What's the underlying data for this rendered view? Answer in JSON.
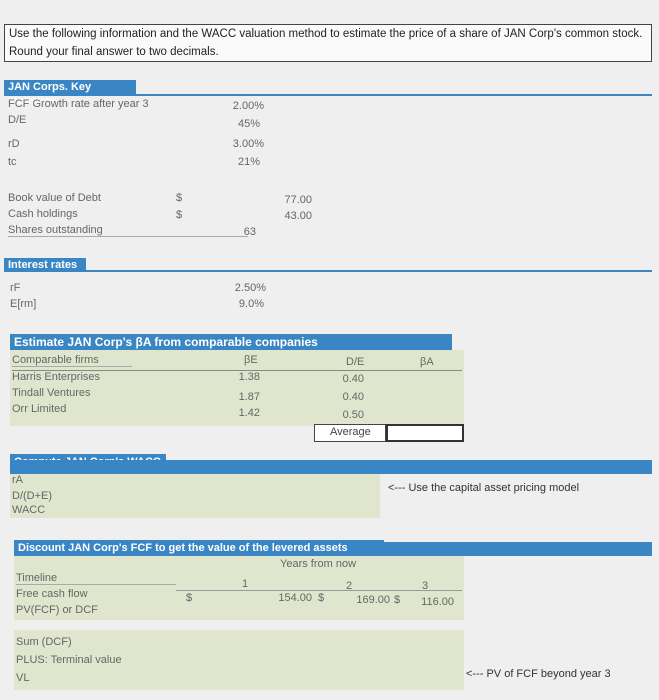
{
  "question": "Use the following information and the WACC valuation method to estimate the price of a share of JAN Corp's common stock. Round your final answer to two decimals.",
  "key_stats": {
    "title": "JAN Corps. Key statistics",
    "rows": [
      {
        "label": "FCF Growth rate after year 3",
        "value": "2.00%"
      },
      {
        "label": "D/E",
        "value": "45%"
      },
      {
        "label": "rD",
        "value": "3.00%"
      },
      {
        "label": "tc",
        "value": "21%"
      }
    ],
    "balance": [
      {
        "label": "Book value of Debt",
        "currency": "$",
        "value": "77.00"
      },
      {
        "label": "Cash holdings",
        "currency": "$",
        "value": "43.00"
      },
      {
        "label": "Shares outstanding",
        "currency": "",
        "value": "63"
      }
    ]
  },
  "interest": {
    "title": "Interest rates",
    "rows": [
      {
        "label": "rF",
        "value": "2.50%"
      },
      {
        "label": "E[rm]",
        "value": "9.0%"
      }
    ]
  },
  "comparables": {
    "title": "Estimate JAN Corp's βA from comparable companies",
    "headers": [
      "Comparable firms",
      "βE",
      "D/E",
      "βA"
    ],
    "rows": [
      {
        "firm": "Harris Enterprises",
        "beta_e": "1.38",
        "de": "0.40"
      },
      {
        "firm": "Tindall Ventures",
        "beta_e": "1.87",
        "de": "0.40"
      },
      {
        "firm": "Orr Limited",
        "beta_e": "1.42",
        "de": "0.50"
      }
    ],
    "average_label": "Average"
  },
  "wacc": {
    "title": "Compute JAN Corp's WACC",
    "rows": [
      "rA",
      "D/(D+E)",
      "WACC"
    ],
    "note": "<--- Use the capital asset pricing model"
  },
  "dcf": {
    "title": "Discount JAN Corp's FCF to get the value of the levered assets",
    "years_header": "Years from now",
    "timeline_label": "Timeline",
    "years": [
      "1",
      "2",
      "3"
    ],
    "fcf_label": "Free cash flow",
    "fcf_currency": [
      "$",
      "$",
      "$"
    ],
    "fcf_values": [
      "154.00",
      "169.00",
      "116.00"
    ],
    "pv_label": "PV(FCF) or DCF",
    "sum_label": "Sum (DCF)",
    "terminal_label": "PLUS: Terminal value",
    "terminal_note": "<--- PV of FCF beyond year 3",
    "vl_label": "VL"
  }
}
